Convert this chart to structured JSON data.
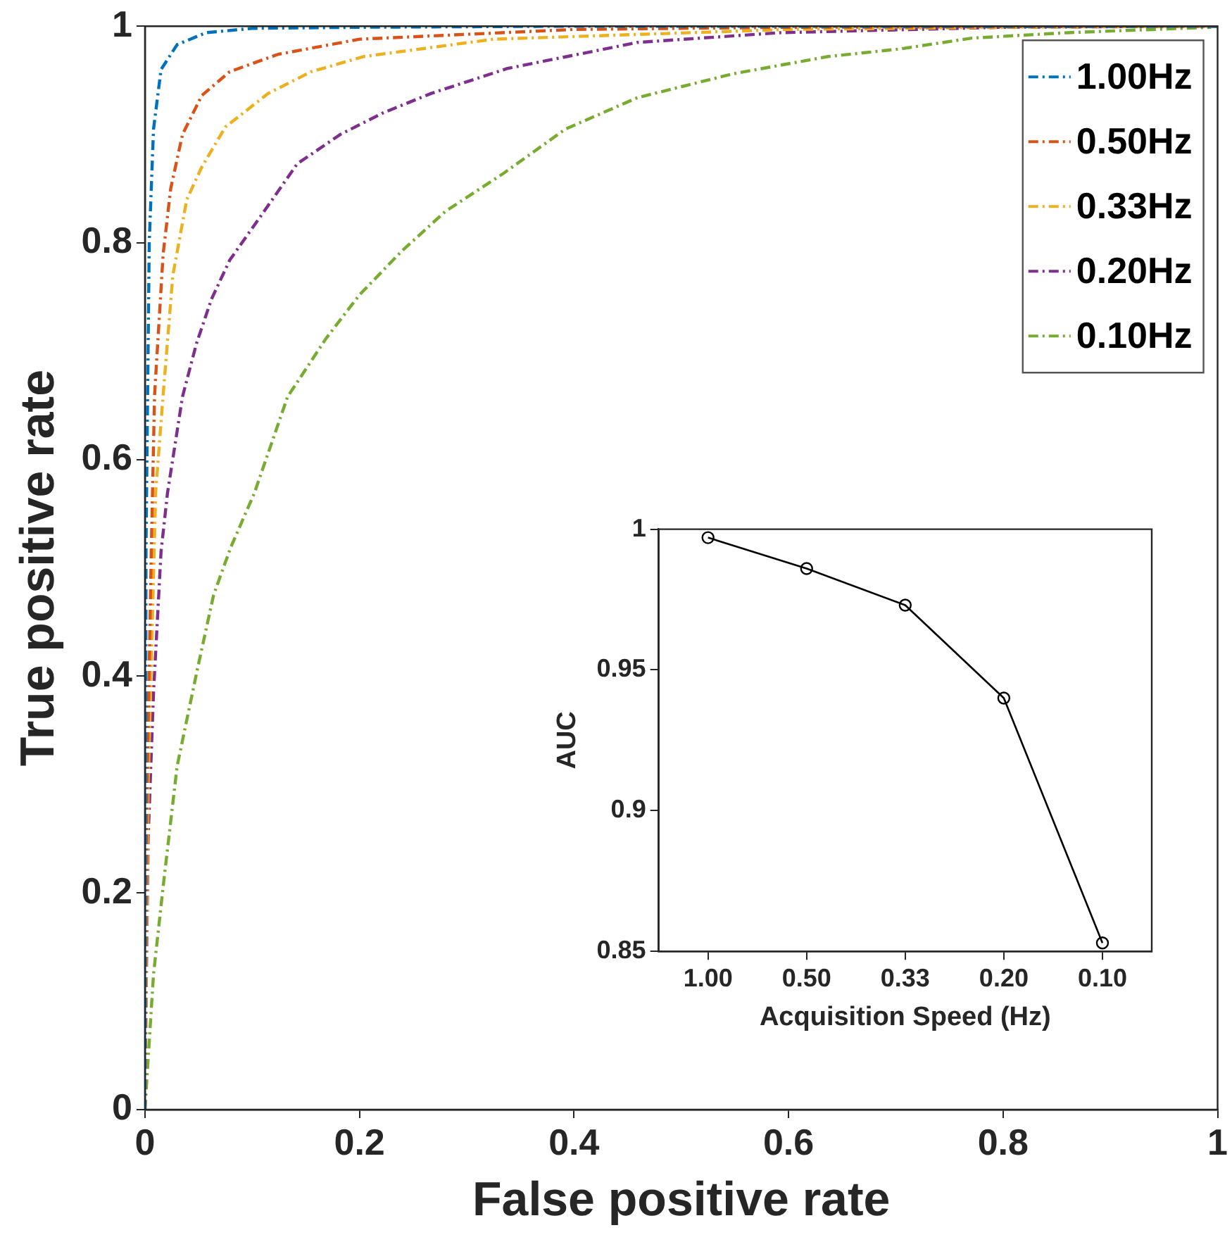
{
  "chart_data": [
    {
      "type": "line",
      "xlabel": "False positive rate",
      "ylabel": "True positive rate",
      "xlim": [
        0,
        1
      ],
      "ylim": [
        0,
        1
      ],
      "xticks": [
        0,
        0.2,
        0.4,
        0.6,
        0.8,
        1
      ],
      "yticks": [
        0,
        0.2,
        0.4,
        0.6,
        0.8,
        1
      ],
      "grid": false,
      "legend": "top right",
      "marker": "none",
      "line_style": "dashed",
      "series": [
        {
          "name": "1.00Hz",
          "color": "#0072bd",
          "x": [
            0,
            0.001,
            0.004,
            0.008,
            0.015,
            0.03,
            0.057,
            0.1,
            0.2,
            0.4,
            1
          ],
          "values": [
            0,
            0.52,
            0.8,
            0.905,
            0.96,
            0.983,
            0.994,
            0.998,
            0.999,
            1,
            1
          ]
        },
        {
          "name": "0.50Hz",
          "color": "#d95319",
          "x": [
            0,
            0.002,
            0.006,
            0.009,
            0.017,
            0.024,
            0.035,
            0.053,
            0.079,
            0.124,
            0.2,
            0.4,
            0.6,
            1
          ],
          "values": [
            0,
            0.3,
            0.52,
            0.66,
            0.79,
            0.85,
            0.9,
            0.936,
            0.958,
            0.974,
            0.988,
            0.997,
            0.999,
            1
          ]
        },
        {
          "name": "0.33Hz",
          "color": "#edb120",
          "x": [
            0,
            0.003,
            0.01,
            0.017,
            0.026,
            0.039,
            0.053,
            0.075,
            0.115,
            0.155,
            0.204,
            0.325,
            0.6,
            0.8,
            1
          ],
          "values": [
            0,
            0.3,
            0.57,
            0.66,
            0.77,
            0.84,
            0.87,
            0.907,
            0.938,
            0.958,
            0.972,
            0.988,
            0.997,
            0.999,
            1
          ]
        },
        {
          "name": "0.20Hz",
          "color": "#7e2f8e",
          "x": [
            0,
            0.001,
            0.003,
            0.008,
            0.015,
            0.021,
            0.035,
            0.048,
            0.062,
            0.079,
            0.111,
            0.142,
            0.182,
            0.222,
            0.267,
            0.338,
            0.459,
            0.592,
            0.8,
            1
          ],
          "values": [
            0,
            0.1,
            0.25,
            0.385,
            0.515,
            0.569,
            0.658,
            0.707,
            0.748,
            0.784,
            0.829,
            0.873,
            0.9,
            0.92,
            0.938,
            0.961,
            0.985,
            0.994,
            0.999,
            1
          ]
        },
        {
          "name": "0.10Hz",
          "color": "#77ac30",
          "x": [
            0,
            0.008,
            0.017,
            0.03,
            0.049,
            0.064,
            0.08,
            0.102,
            0.133,
            0.169,
            0.2,
            0.24,
            0.28,
            0.334,
            0.392,
            0.459,
            0.548,
            0.637,
            0.704,
            0.771,
            0.86,
            0.994
          ],
          "values": [
            0,
            0.125,
            0.206,
            0.317,
            0.407,
            0.475,
            0.519,
            0.569,
            0.658,
            0.712,
            0.752,
            0.793,
            0.829,
            0.864,
            0.905,
            0.934,
            0.956,
            0.972,
            0.979,
            0.989,
            0.994,
            0.999
          ]
        }
      ]
    },
    {
      "type": "line",
      "xlabel": "Acquisition Speed (Hz)",
      "ylabel": "AUC",
      "categories": [
        "1.00",
        "0.50",
        "0.33",
        "0.20",
        "0.10"
      ],
      "ylim": [
        0.85,
        1
      ],
      "yticks": [
        0.85,
        0.9,
        0.95,
        1
      ],
      "grid": false,
      "legend": false,
      "marker": "circle",
      "line_style": "solid",
      "series": [
        {
          "color": "#000000",
          "values": [
            0.997,
            0.986,
            0.973,
            0.94,
            0.853
          ]
        }
      ]
    }
  ]
}
